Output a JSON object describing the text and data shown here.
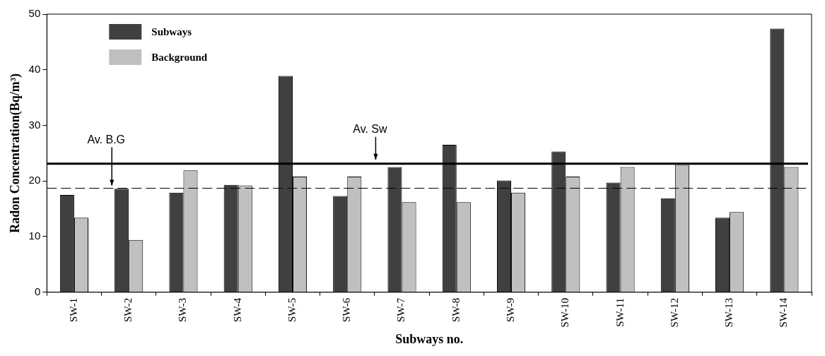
{
  "chart_data": {
    "type": "bar",
    "xlabel": "Subways no.",
    "ylabel": "Radon Concentration(Bq/m³)",
    "categories": [
      "SW-1",
      "SW-2",
      "SW-3",
      "SW-4",
      "SW-5",
      "SW-6",
      "SW-7",
      "SW-8",
      "SW-9",
      "SW-10",
      "SW-11",
      "SW-12",
      "SW-13",
      "SW-14"
    ],
    "series": [
      {
        "name": "Subways",
        "color": "#404040",
        "values": [
          17.5,
          18.6,
          17.9,
          19.3,
          38.9,
          17.3,
          22.5,
          26.5,
          20.1,
          25.3,
          19.7,
          16.9,
          13.4,
          47.4
        ]
      },
      {
        "name": "Background",
        "color": "#c0c0c0",
        "values": [
          13.4,
          9.4,
          21.9,
          19.2,
          20.8,
          20.8,
          16.2,
          16.2,
          17.9,
          20.8,
          22.5,
          22.9,
          14.4,
          22.5
        ]
      }
    ],
    "ylim": [
      0,
      50
    ],
    "yticks": [
      0,
      10,
      20,
      30,
      40,
      50
    ],
    "grid": false,
    "legend": "top left",
    "ref_lines": [
      {
        "axis": "y",
        "value": 18.7,
        "label": "Av. B.G",
        "color": "#000000",
        "line_style": "dashed"
      },
      {
        "axis": "y",
        "value": 23.1,
        "label": "Av. Sw",
        "color": "#000000",
        "line_style": "solid"
      }
    ]
  }
}
